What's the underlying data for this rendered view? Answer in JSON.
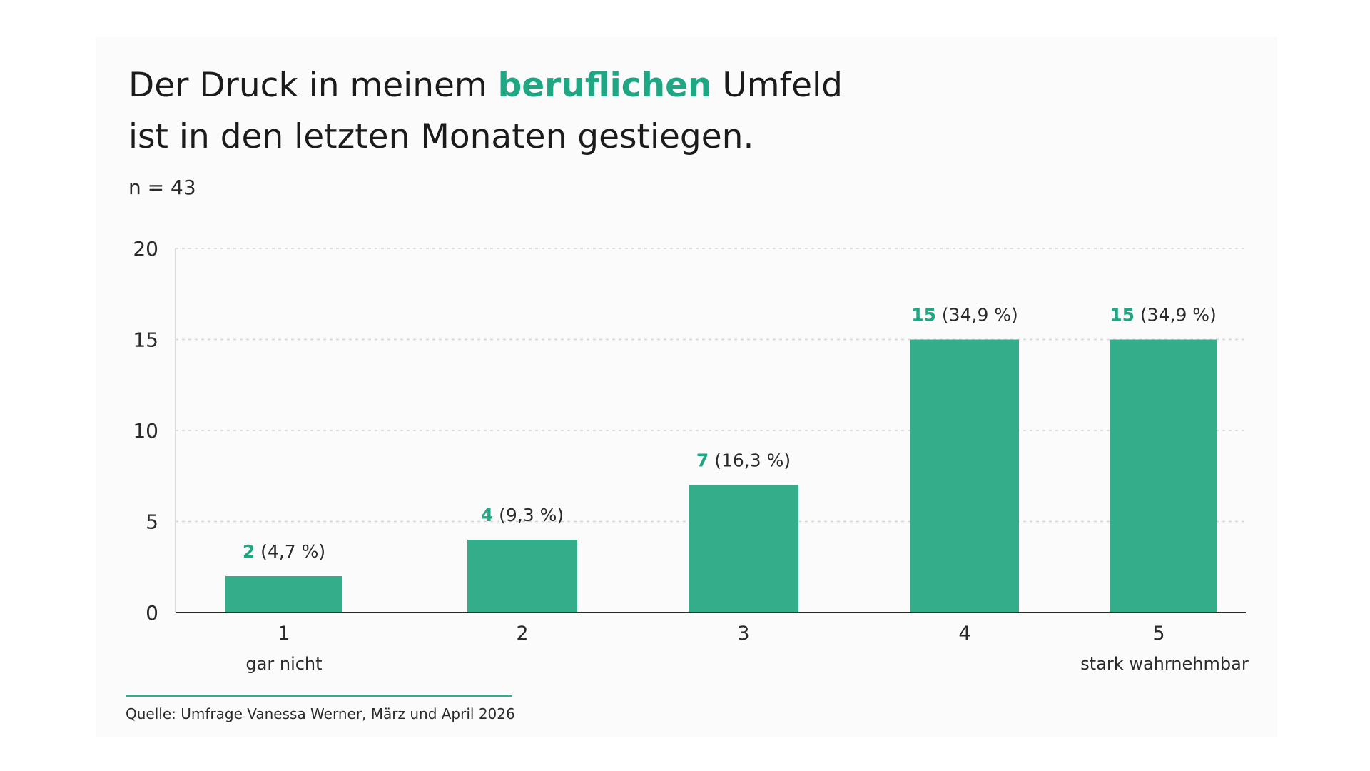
{
  "title": {
    "before": "Der Druck in meinem ",
    "highlight": "beruflichen",
    "after": " Umfeld",
    "line2": "ist in den letzten Monaten gestiegen."
  },
  "sample_size": "n = 43",
  "source": "Quelle: Umfrage Vanessa Werner, März und April 2026",
  "colors": {
    "bar": "#34ad8b",
    "accent": "#1fa784",
    "source_rule": "#2ab08a",
    "grid": "#d4d4d4",
    "axis": "#2a2a2a"
  },
  "chart_data": {
    "type": "bar",
    "categories": [
      "1",
      "2",
      "3",
      "4",
      "5"
    ],
    "category_sublabels": [
      "gar nicht",
      "",
      "",
      "",
      "stark wahrnehmbar"
    ],
    "values": [
      2,
      4,
      7,
      15,
      15
    ],
    "value_labels": [
      "2",
      "4",
      "7",
      "15",
      "15"
    ],
    "percent_labels": [
      "(4,7 %)",
      "(9,3 %)",
      "(16,3 %)",
      "(34,9 %)",
      "(34,9 %)"
    ],
    "ylim": [
      0,
      20
    ],
    "yticks": [
      0,
      5,
      10,
      15,
      20
    ],
    "grid": true,
    "legend": "none"
  }
}
